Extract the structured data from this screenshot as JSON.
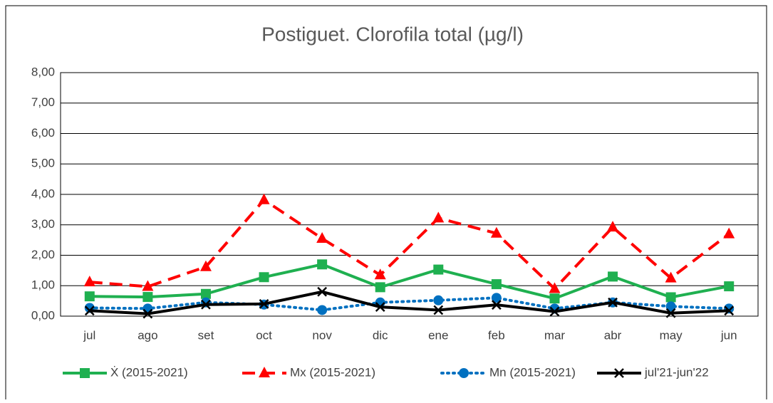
{
  "chart_data": {
    "type": "line",
    "title": "Postiguet. Clorofila total (µg/l)",
    "categories": [
      "jul",
      "ago",
      "set",
      "oct",
      "nov",
      "dic",
      "ene",
      "feb",
      "mar",
      "abr",
      "may",
      "jun"
    ],
    "ylim": [
      0,
      8
    ],
    "yticks": [
      {
        "value": 0,
        "label": "0,00"
      },
      {
        "value": 1,
        "label": "1,00"
      },
      {
        "value": 2,
        "label": "2,00"
      },
      {
        "value": 3,
        "label": "3,00"
      },
      {
        "value": 4,
        "label": "4,00"
      },
      {
        "value": 5,
        "label": "5,00"
      },
      {
        "value": 6,
        "label": "6,00"
      },
      {
        "value": 7,
        "label": "7,00"
      },
      {
        "value": 8,
        "label": "8,00"
      }
    ],
    "grid": true,
    "legend": "bottom",
    "series": [
      {
        "name": "Ẋ (2015-2021)",
        "color": "#1fb050",
        "marker": "square",
        "style": "solid",
        "values": [
          0.65,
          0.63,
          0.73,
          1.28,
          1.7,
          0.95,
          1.53,
          1.05,
          0.58,
          1.3,
          0.62,
          0.98
        ]
      },
      {
        "name": "Mx (2015-2021)",
        "color": "#ff0000",
        "marker": "triangle",
        "style": "dashed",
        "values": [
          1.12,
          0.97,
          1.62,
          3.82,
          2.55,
          1.35,
          3.22,
          2.72,
          0.9,
          2.92,
          1.25,
          2.7
        ]
      },
      {
        "name": "Mn (2015-2021)",
        "color": "#0070c0",
        "marker": "circle",
        "style": "dotted",
        "values": [
          0.27,
          0.25,
          0.45,
          0.38,
          0.2,
          0.45,
          0.52,
          0.6,
          0.25,
          0.45,
          0.32,
          0.25
        ]
      },
      {
        "name": "jul'21-jun'22",
        "color": "#000000",
        "marker": "x",
        "style": "solid",
        "values": [
          0.18,
          0.08,
          0.38,
          0.4,
          0.8,
          0.3,
          0.2,
          0.37,
          0.15,
          0.45,
          0.1,
          0.18
        ]
      }
    ]
  }
}
